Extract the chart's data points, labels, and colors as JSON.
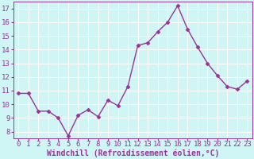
{
  "x": [
    0,
    1,
    2,
    3,
    4,
    5,
    6,
    7,
    8,
    9,
    10,
    11,
    12,
    13,
    14,
    15,
    16,
    17,
    18,
    19,
    20,
    21,
    22,
    23
  ],
  "y": [
    10.8,
    10.8,
    9.5,
    9.5,
    9.0,
    7.7,
    9.2,
    9.6,
    9.1,
    10.3,
    9.9,
    11.3,
    14.3,
    14.5,
    15.3,
    16.0,
    17.2,
    15.5,
    14.2,
    13.0,
    12.1,
    11.3,
    11.1,
    11.7
  ],
  "line_color": "#993399",
  "marker": "D",
  "markersize": 2.5,
  "linewidth": 1,
  "bg_color": "#cff5f5",
  "grid_color": "#ffffff",
  "xlabel": "Windchill (Refroidissement éolien,°C)",
  "xlabel_fontsize": 7,
  "xtick_labels": [
    "0",
    "1",
    "2",
    "3",
    "4",
    "5",
    "6",
    "7",
    "8",
    "9",
    "10",
    "11",
    "12",
    "13",
    "14",
    "15",
    "16",
    "17",
    "18",
    "19",
    "20",
    "21",
    "22",
    "23"
  ],
  "ytick_min": 8,
  "ytick_max": 17,
  "ytick_step": 1,
  "tick_color": "#993399",
  "tick_fontsize": 6.5,
  "xlabel_color": "#993399",
  "spine_color": "#993399"
}
